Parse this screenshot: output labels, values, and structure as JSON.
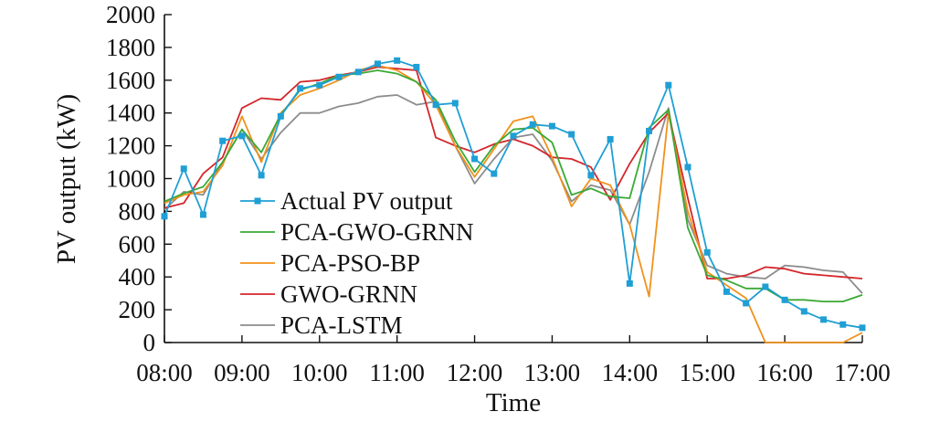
{
  "chart_data": {
    "type": "line",
    "xlabel": "Time",
    "ylabel": "PV output (kW)",
    "xlim": [
      0,
      9
    ],
    "ylim": [
      0,
      2000
    ],
    "xticks": [
      {
        "value": 0,
        "label": "08:00"
      },
      {
        "value": 1,
        "label": "09:00"
      },
      {
        "value": 2,
        "label": "10:00"
      },
      {
        "value": 3,
        "label": "11:00"
      },
      {
        "value": 4,
        "label": "12:00"
      },
      {
        "value": 5,
        "label": "13:00"
      },
      {
        "value": 6,
        "label": "14:00"
      },
      {
        "value": 7,
        "label": "15:00"
      },
      {
        "value": 8,
        "label": "16:00"
      },
      {
        "value": 9,
        "label": "17:00"
      }
    ],
    "yticks": [
      0,
      200,
      400,
      600,
      800,
      1000,
      1200,
      1400,
      1600,
      1800,
      2000
    ],
    "grid": false,
    "legend_position": "left-center",
    "x": [
      0,
      0.25,
      0.5,
      0.75,
      1,
      1.25,
      1.5,
      1.75,
      2,
      2.25,
      2.5,
      2.75,
      3,
      3.25,
      3.5,
      3.75,
      4,
      4.25,
      4.5,
      4.75,
      5,
      5.25,
      5.5,
      5.75,
      6,
      6.25,
      6.5,
      6.75,
      7,
      7.25,
      7.5,
      7.75,
      8,
      8.25,
      8.5,
      8.75,
      9
    ],
    "series": [
      {
        "name": "Actual PV output",
        "color": "#1f9fd4",
        "marker": "square",
        "values": [
          770,
          1060,
          780,
          1230,
          1260,
          1020,
          1380,
          1550,
          1570,
          1620,
          1650,
          1700,
          1720,
          1680,
          1450,
          1460,
          1120,
          1030,
          1260,
          1330,
          1320,
          1270,
          1020,
          1240,
          360,
          1290,
          1570,
          1070,
          550,
          310,
          240,
          340,
          260,
          190,
          140,
          110,
          90
        ]
      },
      {
        "name": "PCA-GWO-GRNN",
        "color": "#3aa935",
        "marker": "none",
        "values": [
          860,
          910,
          950,
          1100,
          1300,
          1160,
          1390,
          1540,
          1580,
          1630,
          1640,
          1660,
          1640,
          1590,
          1480,
          1230,
          1040,
          1200,
          1300,
          1310,
          1220,
          900,
          940,
          890,
          880,
          1310,
          1420,
          700,
          410,
          380,
          330,
          330,
          260,
          260,
          250,
          250,
          290
        ]
      },
      {
        "name": "PCA-PSO-BP",
        "color": "#f0921c",
        "marker": "none",
        "values": [
          850,
          900,
          920,
          1080,
          1380,
          1100,
          1400,
          1510,
          1550,
          1600,
          1660,
          1690,
          1660,
          1590,
          1450,
          1200,
          1010,
          1180,
          1350,
          1380,
          1130,
          830,
          1000,
          960,
          720,
          280,
          1400,
          800,
          430,
          350,
          270,
          0,
          0,
          0,
          0,
          0,
          60
        ]
      },
      {
        "name": "GWO-GRNN",
        "color": "#d4262b",
        "marker": "none",
        "values": [
          820,
          850,
          1030,
          1130,
          1430,
          1490,
          1480,
          1590,
          1600,
          1630,
          1650,
          1680,
          1670,
          1660,
          1250,
          1200,
          1160,
          1210,
          1240,
          1200,
          1130,
          1120,
          1070,
          870,
          1090,
          1280,
          1400,
          880,
          390,
          390,
          410,
          460,
          450,
          420,
          410,
          400,
          390
        ]
      },
      {
        "name": "PCA-LSTM",
        "color": "#8c8c8c",
        "marker": "none",
        "values": [
          810,
          920,
          900,
          1100,
          1300,
          1120,
          1280,
          1400,
          1400,
          1440,
          1460,
          1500,
          1510,
          1450,
          1470,
          1200,
          970,
          1120,
          1250,
          1270,
          1110,
          860,
          960,
          930,
          720,
          1040,
          1430,
          750,
          470,
          420,
          400,
          390,
          470,
          460,
          440,
          430,
          300
        ]
      }
    ]
  }
}
